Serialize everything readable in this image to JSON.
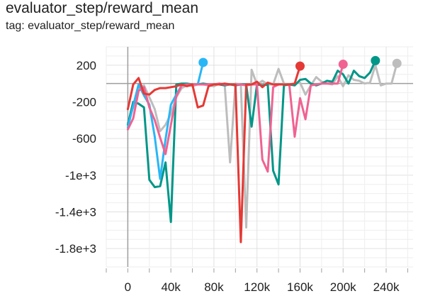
{
  "title": "evaluator_step/reward_mean",
  "subtitle": "tag: evaluator_step/reward_mean",
  "chart_data": {
    "type": "line",
    "xlim": [
      -20000,
      265000
    ],
    "ylim": [
      -2000,
      400
    ],
    "yticks": [
      200,
      -200,
      -600,
      -1000,
      -1400,
      -1800
    ],
    "ytick_labels": [
      "200",
      "-200",
      "-600",
      "-1e+3",
      "-1.4e+3",
      "-1.8e+3"
    ],
    "xticks": [
      0,
      40000,
      80000,
      120000,
      160000,
      200000,
      240000
    ],
    "xtick_labels": [
      "0",
      "40k",
      "80k",
      "120k",
      "160k",
      "200k",
      "240k"
    ],
    "grid": true,
    "legend": "none",
    "series": [
      {
        "color": "#bdbdbd",
        "x": [
          0,
          5000,
          10000,
          15000,
          20000,
          25000,
          30000,
          35000,
          40000,
          45000,
          50000,
          55000,
          60000,
          65000,
          70000,
          75000,
          80000,
          85000,
          90000,
          95000,
          100000,
          105000,
          110000,
          115000,
          120000,
          125000,
          130000,
          135000,
          140000,
          145000,
          150000,
          155000,
          160000,
          165000,
          170000,
          175000,
          180000,
          185000,
          190000,
          195000,
          200000,
          205000,
          210000,
          215000,
          220000,
          225000,
          230000,
          235000,
          240000,
          245000,
          250000
        ],
        "y": [
          -430,
          -260,
          -50,
          -20,
          -150,
          -280,
          -520,
          -450,
          -330,
          -150,
          -50,
          -20,
          -30,
          -10,
          -10,
          -20,
          -30,
          0,
          -10,
          -860,
          0,
          -10,
          -1570,
          150,
          -10,
          30,
          -10,
          -10,
          160,
          0,
          -20,
          0,
          10,
          -120,
          -20,
          70,
          20,
          0,
          -10,
          80,
          -30,
          90,
          40,
          30,
          0,
          10,
          200,
          -20,
          0,
          0,
          220
        ]
      },
      {
        "color": "#009688",
        "x": [
          0,
          5000,
          10000,
          15000,
          20000,
          25000,
          30000,
          35000,
          40000,
          45000,
          50000,
          55000,
          60000,
          65000,
          70000,
          75000,
          80000,
          85000,
          90000,
          95000,
          100000,
          105000,
          110000,
          115000,
          120000,
          125000,
          130000,
          135000,
          140000,
          145000,
          150000,
          155000,
          160000,
          165000,
          170000,
          175000,
          180000,
          185000,
          190000,
          195000,
          200000,
          205000,
          210000,
          215000,
          220000,
          225000,
          230000
        ],
        "y": [
          -450,
          -200,
          -220,
          -260,
          -1050,
          -1130,
          -1120,
          -860,
          -1510,
          -10,
          0,
          0,
          -10,
          -10,
          0,
          -10,
          -10,
          -10,
          -20,
          -10,
          -20,
          -10,
          -10,
          -470,
          -10,
          -20,
          -10,
          -950,
          -1100,
          -20,
          -10,
          -20,
          40,
          50,
          0,
          -20,
          0,
          30,
          20,
          140,
          100,
          0,
          140,
          80,
          60,
          120,
          250
        ]
      },
      {
        "color": "#29b6f6",
        "x": [
          0,
          5000,
          10000,
          15000,
          20000,
          25000,
          30000,
          35000,
          40000,
          45000,
          50000,
          55000,
          60000,
          65000,
          70000
        ],
        "y": [
          -480,
          -240,
          -10,
          -130,
          -230,
          -580,
          -1040,
          -610,
          -230,
          -120,
          -20,
          -10,
          -10,
          -10,
          230
        ]
      },
      {
        "color": "#f06292",
        "x": [
          0,
          5000,
          10000,
          15000,
          20000,
          25000,
          30000,
          35000,
          40000,
          45000,
          50000,
          55000,
          60000,
          65000,
          70000,
          75000,
          80000,
          85000,
          90000,
          95000,
          100000,
          105000,
          110000,
          115000,
          120000,
          125000,
          130000,
          135000,
          140000,
          145000,
          150000,
          155000,
          160000,
          165000,
          170000,
          175000,
          180000,
          185000,
          190000,
          195000,
          200000
        ],
        "y": [
          -500,
          -380,
          -80,
          -40,
          -260,
          -400,
          -590,
          -770,
          -450,
          -140,
          -20,
          -10,
          -10,
          -10,
          -10,
          -10,
          -10,
          0,
          -10,
          -10,
          -10,
          -10,
          -20,
          -10,
          -10,
          -830,
          -960,
          -40,
          -10,
          -10,
          -10,
          -580,
          -160,
          -390,
          -20,
          -10,
          0,
          0,
          0,
          0,
          210
        ]
      },
      {
        "color": "#e53935",
        "x": [
          0,
          5000,
          10000,
          15000,
          20000,
          25000,
          30000,
          35000,
          40000,
          45000,
          50000,
          55000,
          60000,
          65000,
          70000,
          75000,
          80000,
          85000,
          90000,
          95000,
          100000,
          105000,
          110000,
          115000,
          120000,
          125000,
          130000,
          135000,
          140000,
          145000,
          150000,
          155000,
          160000
        ],
        "y": [
          -280,
          -10,
          60,
          -110,
          -120,
          -70,
          -50,
          -50,
          -40,
          -30,
          -10,
          -30,
          -10,
          -260,
          -240,
          -30,
          -10,
          -10,
          0,
          -10,
          -10,
          -1730,
          -10,
          -10,
          20,
          -40,
          10,
          -10,
          -10,
          -10,
          -10,
          0,
          190
        ]
      }
    ]
  }
}
